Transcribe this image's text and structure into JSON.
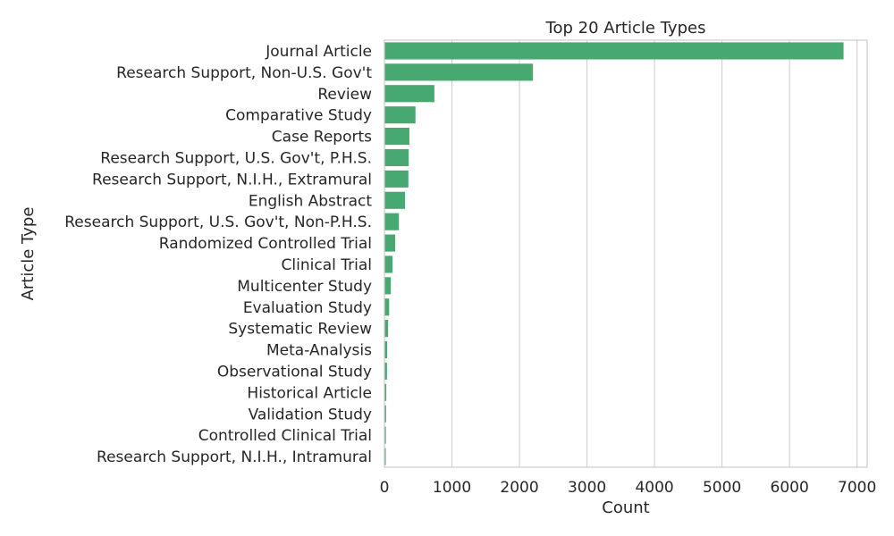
{
  "chart_data": {
    "type": "bar",
    "orientation": "horizontal",
    "title": "Top 20 Article Types",
    "xlabel": "Count",
    "ylabel": "Article Type",
    "xlim": [
      0,
      7150
    ],
    "xticks": [
      0,
      1000,
      2000,
      3000,
      4000,
      5000,
      6000,
      7000
    ],
    "grid": true,
    "bar_color": "#48a872",
    "categories": [
      "Journal Article",
      "Research Support, Non-U.S. Gov't",
      "Review",
      "Comparative Study",
      "Case Reports",
      "Research Support, U.S. Gov't, P.H.S.",
      "Research Support, N.I.H., Extramural",
      "English Abstract",
      "Research Support, U.S. Gov't, Non-P.H.S.",
      "Randomized Controlled Trial",
      "Clinical Trial",
      "Multicenter Study",
      "Evaluation Study",
      "Systematic Review",
      "Meta-Analysis",
      "Observational Study",
      "Historical Article",
      "Validation Study",
      "Controlled Clinical Trial",
      "Research Support, N.I.H., Intramural"
    ],
    "values": [
      6800,
      2200,
      740,
      460,
      370,
      360,
      355,
      305,
      215,
      160,
      120,
      95,
      70,
      55,
      40,
      38,
      28,
      25,
      22,
      20
    ]
  }
}
